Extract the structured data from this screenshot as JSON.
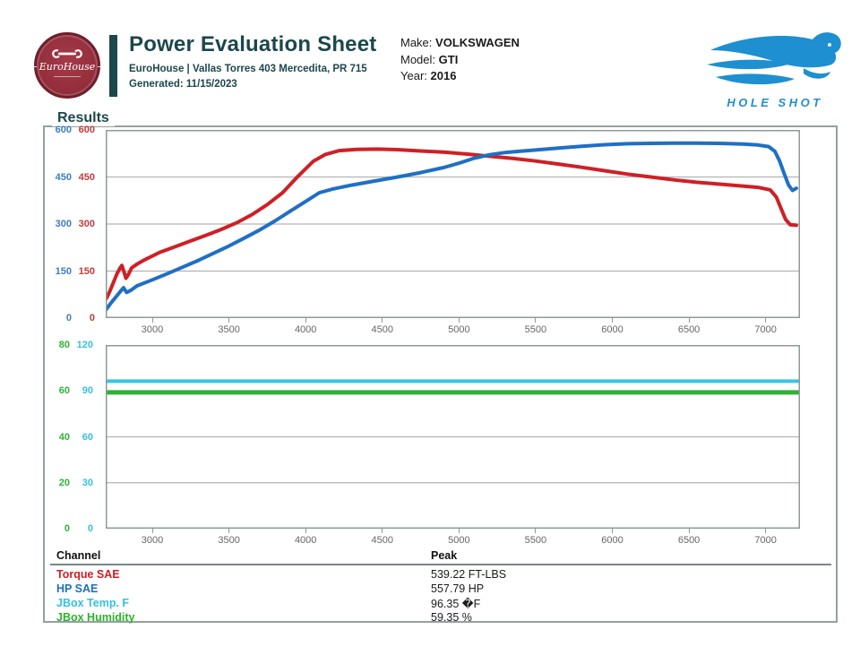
{
  "header": {
    "badge": {
      "name": "EuroHouse"
    },
    "accent_color": "#1c474c",
    "title": "Power Evaluation Sheet",
    "address": "EuroHouse | Vallas Torres 403 Mercedita, PR 715",
    "generated": "Generated: 11/15/2023",
    "vehicle": {
      "make_label": "Make:",
      "make": "VOLKSWAGEN",
      "model_label": "Model:",
      "model": "GTI",
      "year_label": "Year:",
      "year": "2016"
    },
    "brand": {
      "name": "HOLE SHOT",
      "color": "#1e8fd0"
    }
  },
  "results": {
    "label": "Results"
  },
  "chart_data": [
    {
      "type": "line",
      "title": "Power / Torque vs RPM",
      "x_axis": {
        "min": 2696,
        "max": 7224,
        "ticks": [
          3000,
          3500,
          4000,
          4500,
          5000,
          5500,
          6000,
          6500,
          7000
        ]
      },
      "y_axes": [
        {
          "id": "hp",
          "color": "#3d7dc0",
          "min": 0,
          "max": 600,
          "ticks": [
            600,
            450,
            300,
            150,
            0
          ]
        },
        {
          "id": "torque",
          "color": "#c23a3a",
          "min": 0,
          "max": 600,
          "ticks": [
            600,
            450,
            300,
            150,
            0
          ]
        }
      ],
      "grid": true,
      "series": [
        {
          "name": "Torque SAE",
          "axis": "torque",
          "color": "#ce2026",
          "width": 4,
          "points": [
            [
              2700,
              62
            ],
            [
              2720,
              82
            ],
            [
              2745,
              112
            ],
            [
              2770,
              142
            ],
            [
              2790,
              160
            ],
            [
              2802,
              168
            ],
            [
              2818,
              143
            ],
            [
              2828,
              127
            ],
            [
              2845,
              140
            ],
            [
              2865,
              160
            ],
            [
              2900,
              172
            ],
            [
              2950,
              186
            ],
            [
              3050,
              210
            ],
            [
              3150,
              228
            ],
            [
              3250,
              246
            ],
            [
              3350,
              264
            ],
            [
              3450,
              283
            ],
            [
              3550,
              304
            ],
            [
              3650,
              330
            ],
            [
              3750,
              362
            ],
            [
              3850,
              400
            ],
            [
              3950,
              452
            ],
            [
              4050,
              500
            ],
            [
              4130,
              522
            ],
            [
              4220,
              534
            ],
            [
              4330,
              538
            ],
            [
              4470,
              539
            ],
            [
              4600,
              537
            ],
            [
              4750,
              533
            ],
            [
              4900,
              529
            ],
            [
              5050,
              523
            ],
            [
              5200,
              516
            ],
            [
              5350,
              509
            ],
            [
              5500,
              501
            ],
            [
              5650,
              491
            ],
            [
              5800,
              481
            ],
            [
              5950,
              470
            ],
            [
              6100,
              459
            ],
            [
              6250,
              450
            ],
            [
              6400,
              441
            ],
            [
              6550,
              433
            ],
            [
              6700,
              427
            ],
            [
              6850,
              421
            ],
            [
              6950,
              417
            ],
            [
              7030,
              409
            ],
            [
              7070,
              386
            ],
            [
              7100,
              350
            ],
            [
              7130,
              315
            ],
            [
              7160,
              298
            ],
            [
              7200,
              296
            ]
          ]
        },
        {
          "name": "HP SAE",
          "axis": "hp",
          "color": "#1f6fc5",
          "width": 4,
          "points": [
            [
              2700,
              28
            ],
            [
              2730,
              48
            ],
            [
              2760,
              66
            ],
            [
              2790,
              84
            ],
            [
              2812,
              97
            ],
            [
              2832,
              82
            ],
            [
              2858,
              88
            ],
            [
              2900,
              103
            ],
            [
              3000,
              122
            ],
            [
              3100,
              142
            ],
            [
              3200,
              163
            ],
            [
              3300,
              184
            ],
            [
              3400,
              207
            ],
            [
              3500,
              230
            ],
            [
              3600,
              255
            ],
            [
              3700,
              281
            ],
            [
              3800,
              310
            ],
            [
              3900,
              341
            ],
            [
              4000,
              372
            ],
            [
              4090,
              400
            ],
            [
              4180,
              412
            ],
            [
              4300,
              424
            ],
            [
              4450,
              437
            ],
            [
              4600,
              450
            ],
            [
              4750,
              464
            ],
            [
              4900,
              480
            ],
            [
              5000,
              494
            ],
            [
              5100,
              510
            ],
            [
              5200,
              521
            ],
            [
              5300,
              528
            ],
            [
              5400,
              532
            ],
            [
              5500,
              536
            ],
            [
              5650,
              542
            ],
            [
              5800,
              548
            ],
            [
              5950,
              553
            ],
            [
              6100,
              556
            ],
            [
              6250,
              557
            ],
            [
              6400,
              558
            ],
            [
              6550,
              558
            ],
            [
              6700,
              557
            ],
            [
              6850,
              555
            ],
            [
              6950,
              552
            ],
            [
              7020,
              547
            ],
            [
              7060,
              532
            ],
            [
              7090,
              502
            ],
            [
              7120,
              462
            ],
            [
              7150,
              424
            ],
            [
              7175,
              407
            ],
            [
              7200,
              414
            ]
          ]
        }
      ]
    },
    {
      "type": "line",
      "title": "JBox Temp / Humidity vs RPM",
      "x_axis": {
        "min": 2696,
        "max": 7224,
        "ticks": [
          3000,
          3500,
          4000,
          4500,
          5000,
          5500,
          6000,
          6500,
          7000
        ]
      },
      "y_axes": [
        {
          "id": "humidity",
          "color": "#2eb237",
          "min": 0,
          "max": 80,
          "ticks": [
            80,
            60,
            40,
            20,
            0
          ]
        },
        {
          "id": "temp",
          "color": "#38c0df",
          "min": 0,
          "max": 120,
          "ticks": [
            120,
            90,
            60,
            30,
            0
          ]
        }
      ],
      "grid": true,
      "series": [
        {
          "name": "JBox Temp. F",
          "axis": "temp",
          "color": "#38c4e4",
          "width": 4,
          "points": [
            [
              2700,
              96.35
            ],
            [
              7220,
              96.35
            ]
          ]
        },
        {
          "name": "JBox Humidity",
          "axis": "humidity",
          "color": "#2eb237",
          "width": 5,
          "points": [
            [
              2700,
              59.35
            ],
            [
              7220,
              59.35
            ]
          ]
        }
      ]
    }
  ],
  "table": {
    "col_channel": "Channel",
    "col_peak": "Peak",
    "rows": [
      {
        "channel": "Torque SAE",
        "peak": "539.22 FT-LBS",
        "color": "#cc2026"
      },
      {
        "channel": "HP SAE",
        "peak": "557.79 HP",
        "color": "#1e6fc0"
      },
      {
        "channel": "JBox Temp. F",
        "peak": "96.35 �F",
        "color": "#35c0e0"
      },
      {
        "channel": "JBox Humidity",
        "peak": "59.35 %",
        "color": "#2db32d"
      }
    ]
  }
}
